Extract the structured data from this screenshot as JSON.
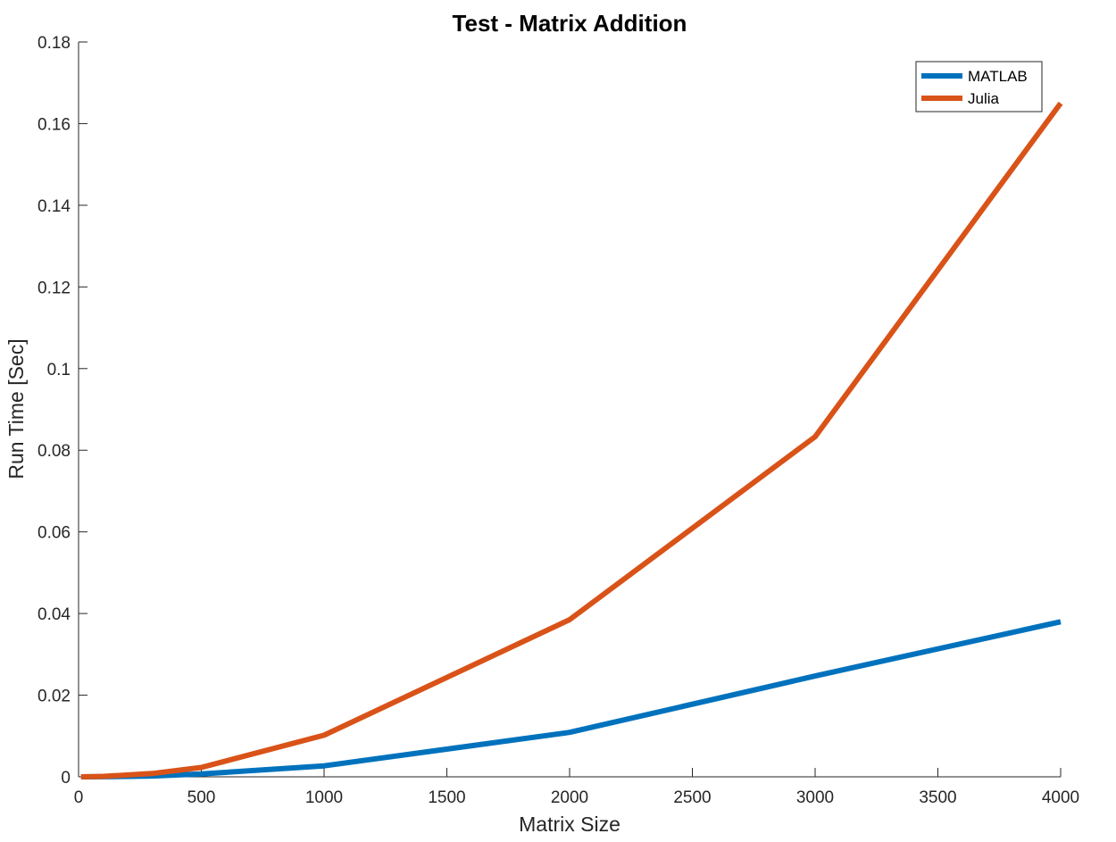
{
  "chart_data": {
    "type": "line",
    "title": "Test - Matrix Addition",
    "xlabel": "Matrix Size",
    "ylabel": "Run Time  [Sec]",
    "xlim": [
      0,
      4000
    ],
    "ylim": [
      0,
      0.18
    ],
    "xticks": [
      0,
      500,
      1000,
      1500,
      2000,
      2500,
      3000,
      3500,
      4000
    ],
    "xtick_labels": [
      "0",
      "500",
      "1000",
      "1500",
      "2000",
      "2500",
      "3000",
      "3500",
      "4000"
    ],
    "yticks": [
      0,
      0.02,
      0.04,
      0.06,
      0.08,
      0.1,
      0.12,
      0.14,
      0.16,
      0.18
    ],
    "ytick_labels": [
      "0",
      "0.02",
      "0.04",
      "0.06",
      "0.08",
      "0.1",
      "0.12",
      "0.14",
      "0.16",
      "0.18"
    ],
    "grid": false,
    "legend_position": "top-right",
    "series": [
      {
        "name": "MATLAB",
        "color": "#0072BD",
        "x": [
          10,
          100,
          300,
          500,
          1000,
          2000,
          3000,
          4000
        ],
        "y": [
          1e-05,
          2e-05,
          0.0002,
          0.0007,
          0.0027,
          0.0109,
          0.0247,
          0.038
        ]
      },
      {
        "name": "Julia",
        "color": "#D95319",
        "x": [
          10,
          100,
          300,
          500,
          1000,
          2000,
          3000,
          4000
        ],
        "y": [
          1e-05,
          0.0001,
          0.0008,
          0.0023,
          0.0102,
          0.0385,
          0.0833,
          0.165
        ]
      }
    ]
  }
}
